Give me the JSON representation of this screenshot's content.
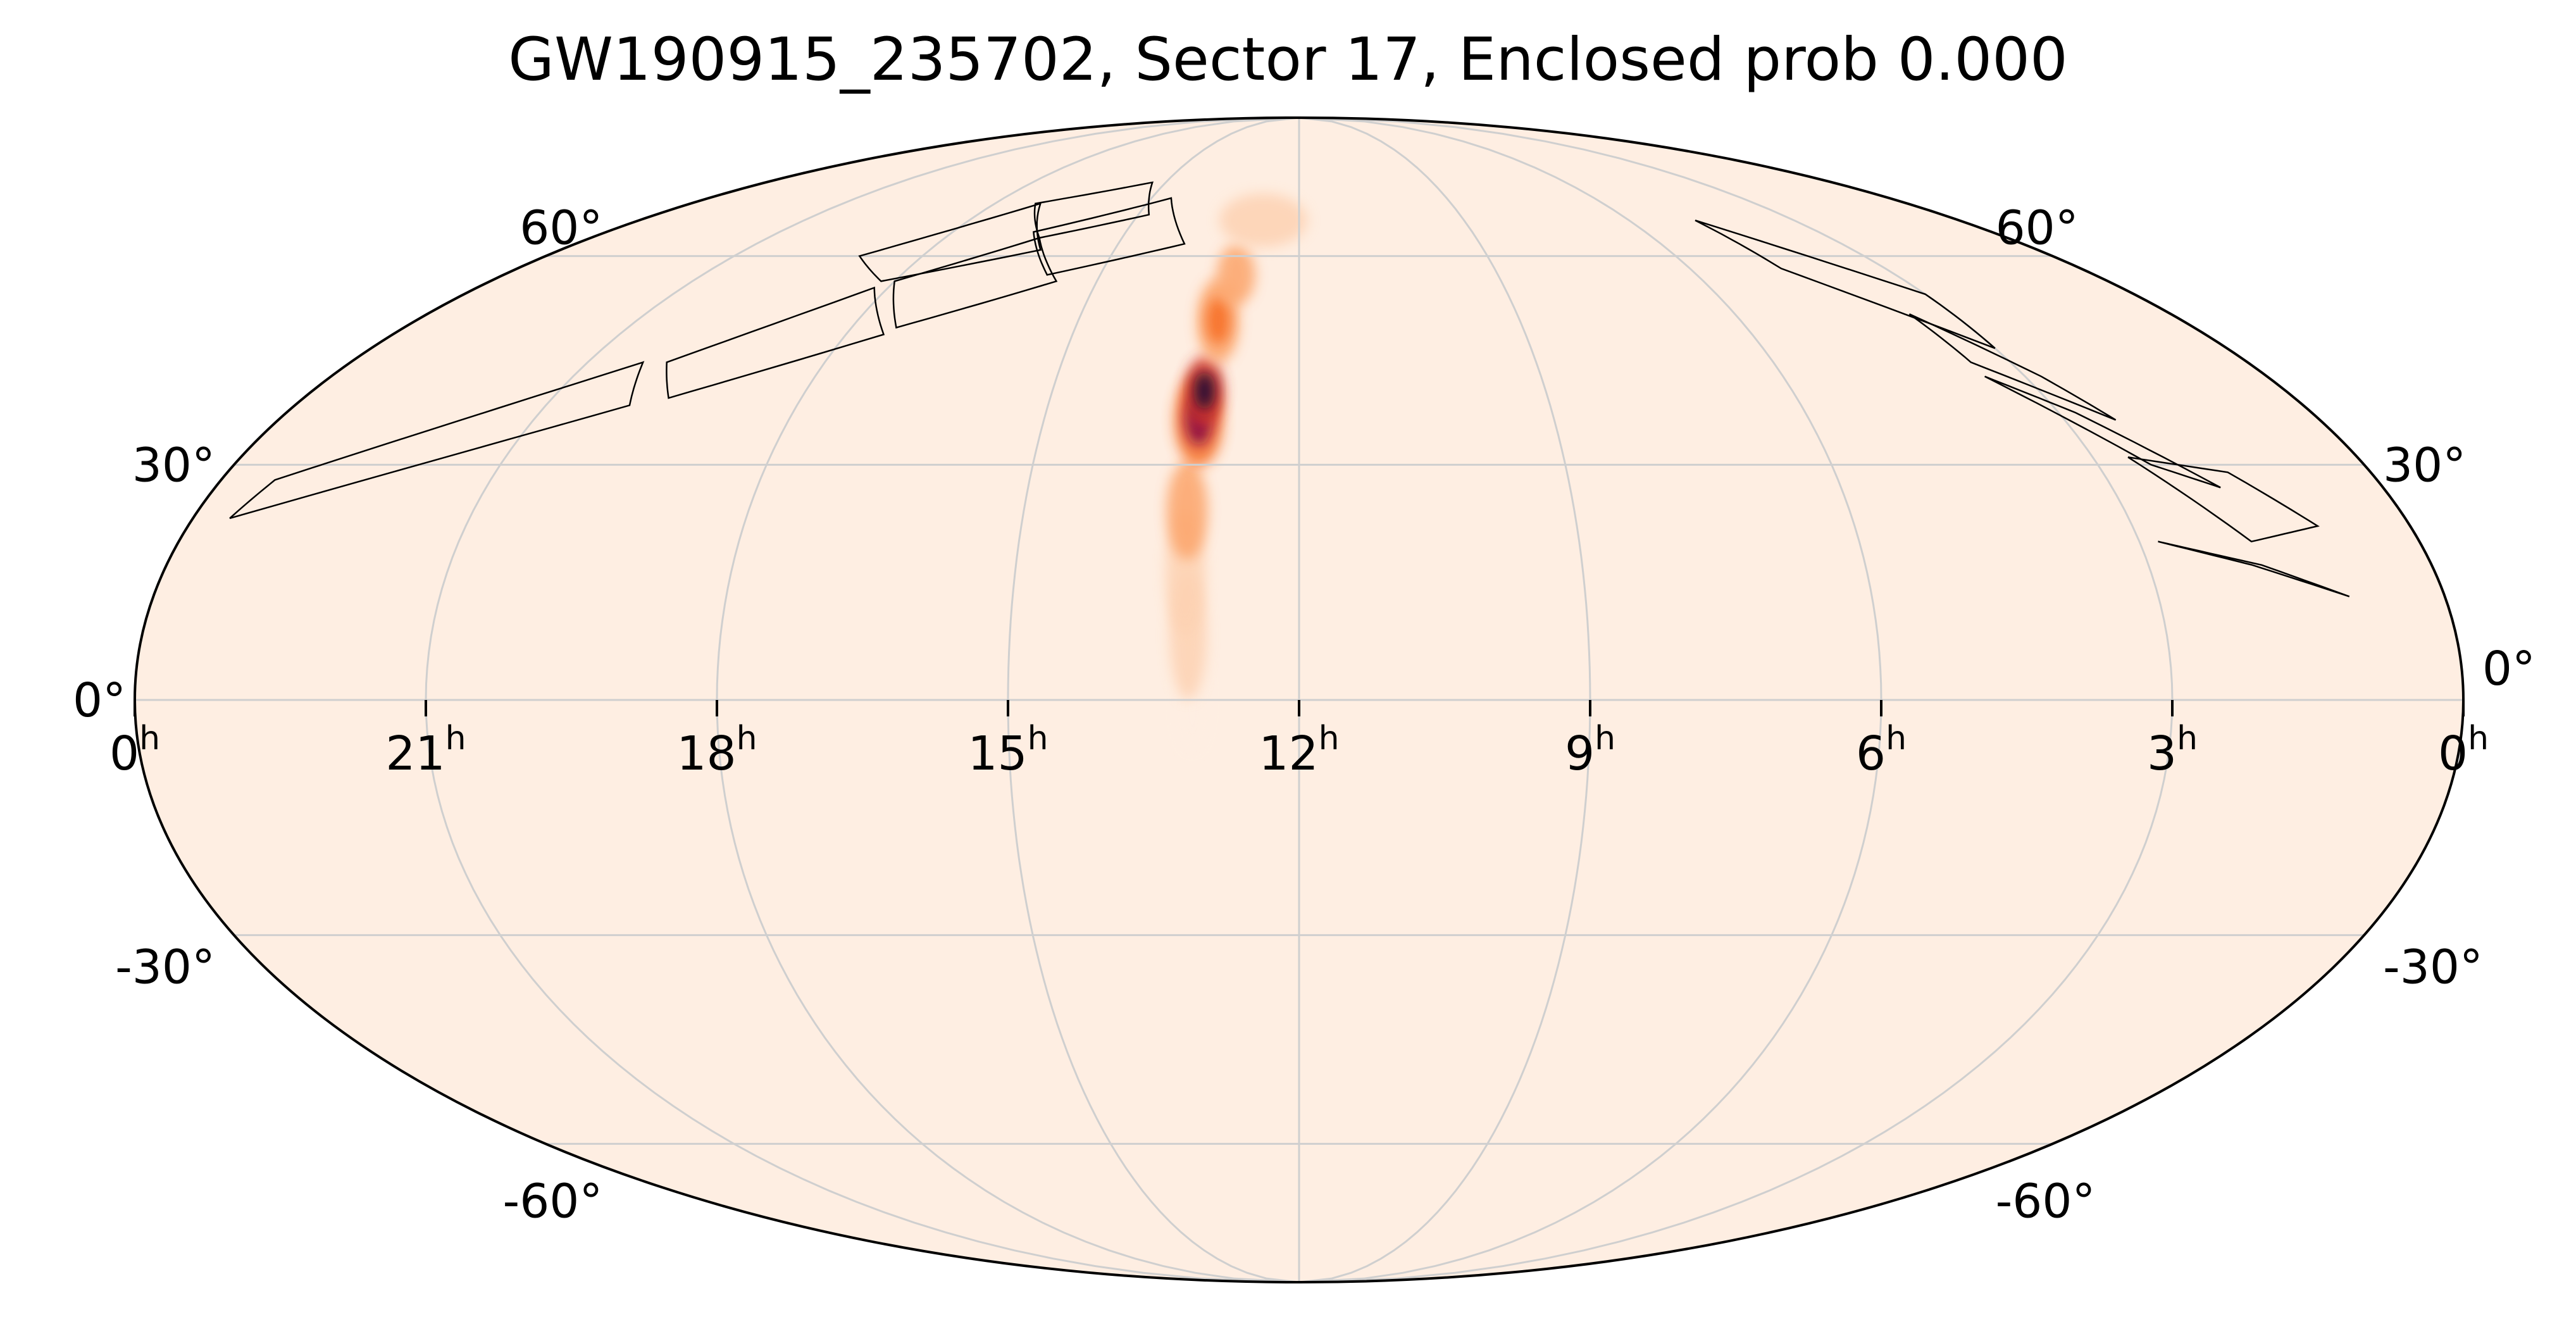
{
  "title": "GW190915_235702, Sector 17, Enclosed prob 0.000",
  "chart_data": {
    "type": "heatmap",
    "projection": "mollweide",
    "title": "GW190915_235702, Sector 17, Enclosed prob 0.000",
    "ra_ticks": [
      {
        "label": "0",
        "ra_h": 24
      },
      {
        "label": "21",
        "ra_h": 21
      },
      {
        "label": "18",
        "ra_h": 18
      },
      {
        "label": "15",
        "ra_h": 15
      },
      {
        "label": "12",
        "ra_h": 12
      },
      {
        "label": "9",
        "ra_h": 9
      },
      {
        "label": "6",
        "ra_h": 6
      },
      {
        "label": "3",
        "ra_h": 3
      },
      {
        "label": "0",
        "ra_h": 0
      }
    ],
    "ra_unit": "h",
    "dec_ticks_left": [
      {
        "label": "60°",
        "dec": 60
      },
      {
        "label": "30°",
        "dec": 30
      },
      {
        "label": "0°",
        "dec": 0
      },
      {
        "label": "-30°",
        "dec": -30
      },
      {
        "label": "-60°",
        "dec": -60
      }
    ],
    "dec_ticks_right": [
      {
        "label": "60°",
        "dec": 60
      },
      {
        "label": "30°",
        "dec": 30
      },
      {
        "label": "0°",
        "dec": 0
      },
      {
        "label": "-30°",
        "dec": -30
      },
      {
        "label": "-60°",
        "dec": -60
      }
    ],
    "graticule": {
      "ra_step_h": 3,
      "dec_values": [
        -60,
        -30,
        0,
        30,
        60
      ]
    },
    "background_color": "#feeee2",
    "grid_color": "#cfcfcf",
    "colormap": [
      "#feeee2",
      "#fdd2b2",
      "#fca46b",
      "#f7722a",
      "#d6372a",
      "#8d1145",
      "#2b0b35"
    ],
    "probability_blobs": [
      {
        "ra_h": 13.1,
        "dec": 0,
        "sigma_ra_h": 0.1,
        "sigma_dec": 4,
        "intensity": 0.12
      },
      {
        "ra_h": 13.15,
        "dec": 8,
        "sigma_ra_h": 0.12,
        "sigma_dec": 5,
        "intensity": 0.22
      },
      {
        "ra_h": 13.2,
        "dec": 16,
        "sigma_ra_h": 0.13,
        "sigma_dec": 5,
        "intensity": 0.32
      },
      {
        "ra_h": 13.22,
        "dec": 24,
        "sigma_ra_h": 0.14,
        "sigma_dec": 4,
        "intensity": 0.45
      },
      {
        "ra_h": 13.18,
        "dec": 36,
        "sigma_ra_h": 0.18,
        "sigma_dec": 4,
        "intensity": 0.8
      },
      {
        "ra_h": 13.15,
        "dec": 40,
        "sigma_ra_h": 0.15,
        "sigma_dec": 3,
        "intensity": 1.0
      },
      {
        "ra_h": 13.1,
        "dec": 50,
        "sigma_ra_h": 0.18,
        "sigma_dec": 4,
        "intensity": 0.55
      },
      {
        "ra_h": 12.95,
        "dec": 57,
        "sigma_ra_h": 0.18,
        "sigma_dec": 3,
        "intensity": 0.4
      },
      {
        "ra_h": 12.65,
        "dec": 66,
        "sigma_ra_h": 0.5,
        "sigma_dec": 3,
        "intensity": 0.28
      }
    ],
    "sector_footprints": [
      {
        "name": "camera-left-1",
        "corners": [
          [
            23.4,
            28
          ],
          [
            20.3,
            44
          ],
          [
            20.0,
            38
          ],
          [
            23.6,
            23
          ]
        ]
      },
      {
        "name": "camera-left-2",
        "corners": [
          [
            20.0,
            44
          ],
          [
            18.2,
            55
          ],
          [
            17.5,
            48
          ],
          [
            19.6,
            39
          ]
        ]
      },
      {
        "name": "camera-left-3",
        "corners": [
          [
            18.0,
            56
          ],
          [
            16.4,
            63
          ],
          [
            15.6,
            56
          ],
          [
            17.4,
            49
          ]
        ]
      },
      {
        "name": "camera-left-4",
        "corners": [
          [
            16.6,
            64
          ],
          [
            14.6,
            70
          ],
          [
            13.9,
            62
          ],
          [
            15.8,
            57
          ]
        ]
      },
      {
        "name": "camera-left-5",
        "corners": [
          [
            19.0,
            60
          ],
          [
            17.1,
            69
          ],
          [
            16.2,
            61
          ],
          [
            18.2,
            56
          ]
        ]
      },
      {
        "name": "camera-left-6",
        "corners": [
          [
            17.2,
            69
          ],
          [
            15.3,
            73
          ],
          [
            14.8,
            67
          ],
          [
            16.4,
            63
          ]
        ]
      },
      {
        "name": "camera-right-1",
        "corners": [
          [
            4.8,
            66
          ],
          [
            3.0,
            54
          ],
          [
            3.0,
            46
          ],
          [
            4.6,
            58
          ]
        ]
      },
      {
        "name": "camera-right-2",
        "corners": [
          [
            3.6,
            51
          ],
          [
            2.8,
            42
          ],
          [
            2.4,
            36
          ],
          [
            3.5,
            44
          ]
        ]
      },
      {
        "name": "camera-right-3",
        "corners": [
          [
            3.5,
            42
          ],
          [
            2.4,
            30
          ],
          [
            1.8,
            27
          ],
          [
            2.8,
            37
          ]
        ]
      },
      {
        "name": "camera-right-4",
        "corners": [
          [
            2.6,
            31
          ],
          [
            1.8,
            20
          ],
          [
            1.0,
            22
          ],
          [
            1.6,
            29
          ]
        ]
      },
      {
        "name": "camera-right-5",
        "corners": [
          [
            2.8,
            20
          ],
          [
            1.9,
            17
          ],
          [
            1.0,
            13
          ],
          [
            1.8,
            17
          ]
        ]
      }
    ]
  }
}
